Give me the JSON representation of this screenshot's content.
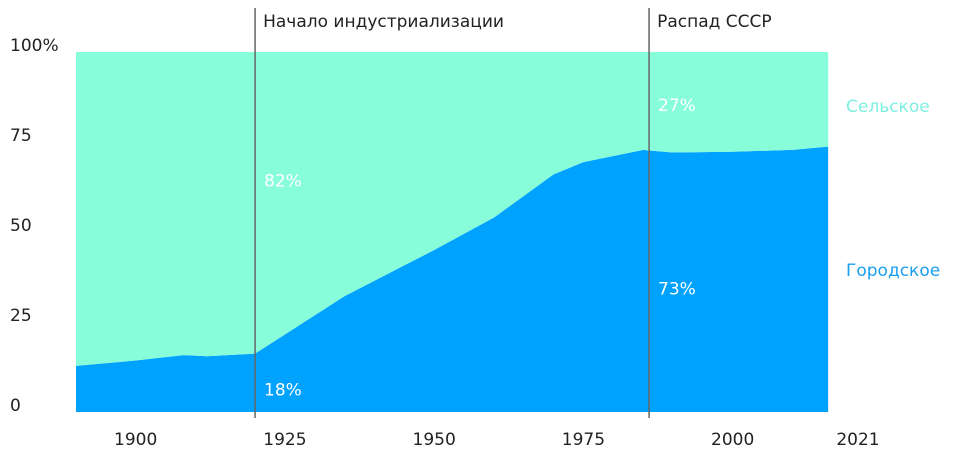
{
  "chart_data": {
    "type": "stacked_area",
    "x": [
      1890,
      1900,
      1908,
      1912,
      1920,
      1935,
      1950,
      1960,
      1970,
      1975,
      1985,
      1987,
      1990,
      2000,
      2010,
      2016
    ],
    "series": [
      {
        "name": "Городское",
        "color": "#00a2ff",
        "values": [
          12.8,
          14.3,
          15.8,
          15.5,
          16.2,
          32.2,
          45,
          54,
          66,
          69.4,
          72.8,
          72.5,
          72.1,
          72.3,
          72.8,
          73.7
        ]
      },
      {
        "name": "Сельское",
        "color": "#88fdd9",
        "values": [
          87.2,
          85.7,
          84.2,
          84.5,
          83.8,
          67.8,
          55,
          46,
          34,
          30.6,
          27.2,
          27.5,
          27.9,
          27.7,
          27.2,
          26.3
        ]
      }
    ],
    "xlim": [
      1890,
      2021
    ],
    "xticks": [
      1900,
      1925,
      1950,
      1975,
      2000,
      2021
    ],
    "ylim": [
      0,
      100
    ],
    "yticks": [
      0,
      25,
      50,
      75,
      {
        "value": 100,
        "label": "100%"
      }
    ],
    "grid": false,
    "events": [
      {
        "x": 1920,
        "label": "Начало индустриализации"
      },
      {
        "x": 1986,
        "label": "Распад СССР"
      }
    ],
    "annotations": [
      {
        "text": "18%",
        "x": 1921.5,
        "y": 6
      },
      {
        "text": "82%",
        "x": 1921.5,
        "y": 64
      },
      {
        "text": "27%",
        "x": 1987.5,
        "y": 85
      },
      {
        "text": "73%",
        "x": 1987.5,
        "y": 34
      }
    ]
  }
}
